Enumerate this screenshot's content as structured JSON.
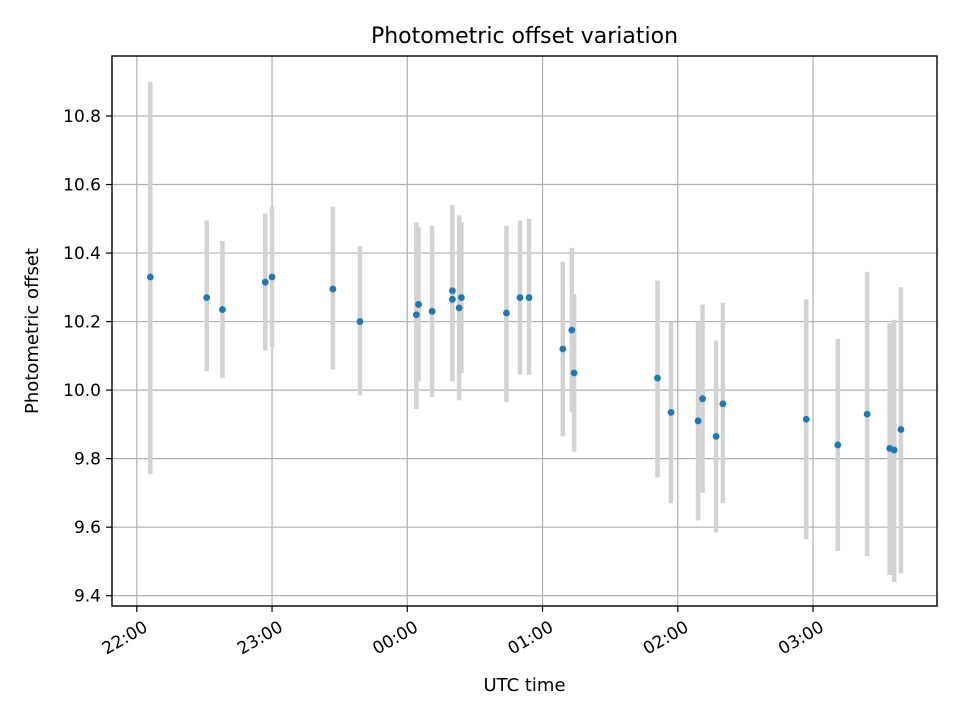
{
  "chart_data": {
    "type": "scatter",
    "title": "Photometric offset variation",
    "xlabel": "UTC time",
    "ylabel": "Photometric offset",
    "x_unit": "UTC time (HH:MM)",
    "xlim": [
      "21:49",
      "03:55"
    ],
    "ylim": [
      9.37,
      10.975
    ],
    "x_ticks": [
      "22:00",
      "23:00",
      "00:00",
      "01:00",
      "02:00",
      "03:00"
    ],
    "y_ticks": [
      9.4,
      9.6,
      9.8,
      10.0,
      10.2,
      10.4,
      10.6,
      10.8
    ],
    "grid": true,
    "error_bar_color": "#d3d3d3",
    "point_color": "#1f77b4",
    "points": [
      {
        "x": "22:06",
        "y": 10.33,
        "low": 9.755,
        "high": 10.9
      },
      {
        "x": "22:31",
        "y": 10.27,
        "low": 10.055,
        "high": 10.495
      },
      {
        "x": "22:38",
        "y": 10.235,
        "low": 10.035,
        "high": 10.435
      },
      {
        "x": "22:57",
        "y": 10.315,
        "low": 10.115,
        "high": 10.515
      },
      {
        "x": "23:00",
        "y": 10.33,
        "low": 10.125,
        "high": 10.535
      },
      {
        "x": "23:27",
        "y": 10.295,
        "low": 10.06,
        "high": 10.535
      },
      {
        "x": "23:39",
        "y": 10.2,
        "low": 9.985,
        "high": 10.42
      },
      {
        "x": "00:04",
        "y": 10.22,
        "low": 9.945,
        "high": 10.49
      },
      {
        "x": "00:05",
        "y": 10.25,
        "low": 10.025,
        "high": 10.475
      },
      {
        "x": "00:11",
        "y": 10.23,
        "low": 9.98,
        "high": 10.48
      },
      {
        "x": "00:20",
        "y": 10.29,
        "low": 10.04,
        "high": 10.54
      },
      {
        "x": "00:20",
        "y": 10.265,
        "low": 10.025,
        "high": 10.515
      },
      {
        "x": "00:23",
        "y": 10.24,
        "low": 9.97,
        "high": 10.51
      },
      {
        "x": "00:24",
        "y": 10.27,
        "low": 10.05,
        "high": 10.49
      },
      {
        "x": "00:44",
        "y": 10.225,
        "low": 9.965,
        "high": 10.48
      },
      {
        "x": "00:50",
        "y": 10.27,
        "low": 10.045,
        "high": 10.495
      },
      {
        "x": "00:54",
        "y": 10.27,
        "low": 10.045,
        "high": 10.5
      },
      {
        "x": "01:09",
        "y": 10.12,
        "low": 9.865,
        "high": 10.375
      },
      {
        "x": "01:13",
        "y": 10.175,
        "low": 9.935,
        "high": 10.415
      },
      {
        "x": "01:14",
        "y": 10.05,
        "low": 9.82,
        "high": 10.28
      },
      {
        "x": "01:51",
        "y": 10.035,
        "low": 9.745,
        "high": 10.32
      },
      {
        "x": "01:57",
        "y": 9.935,
        "low": 9.67,
        "high": 10.2
      },
      {
        "x": "02:09",
        "y": 9.91,
        "low": 9.62,
        "high": 10.2
      },
      {
        "x": "02:11",
        "y": 9.975,
        "low": 9.7,
        "high": 10.25
      },
      {
        "x": "02:17",
        "y": 9.865,
        "low": 9.585,
        "high": 10.145
      },
      {
        "x": "02:20",
        "y": 9.96,
        "low": 9.67,
        "high": 10.255
      },
      {
        "x": "02:57",
        "y": 9.915,
        "low": 9.565,
        "high": 10.265
      },
      {
        "x": "03:11",
        "y": 9.84,
        "low": 9.53,
        "high": 10.15
      },
      {
        "x": "03:24",
        "y": 9.93,
        "low": 9.515,
        "high": 10.345
      },
      {
        "x": "03:34",
        "y": 9.83,
        "low": 9.46,
        "high": 10.195
      },
      {
        "x": "03:36",
        "y": 9.825,
        "low": 9.44,
        "high": 10.205
      },
      {
        "x": "03:39",
        "y": 9.885,
        "low": 9.465,
        "high": 10.3
      }
    ]
  }
}
